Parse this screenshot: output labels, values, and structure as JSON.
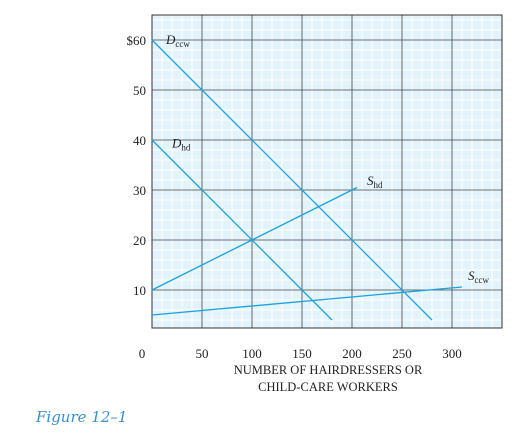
{
  "chart_data": {
    "type": "line",
    "xlabel_lines": [
      "NUMBER OF HAIRDRESSERS OR",
      "CHILD-CARE WORKERS"
    ],
    "ylabel": "",
    "origin_label": "0",
    "xlim": [
      0,
      350
    ],
    "ylim": [
      0,
      65
    ],
    "xticks": [
      50,
      100,
      150,
      200,
      250,
      300
    ],
    "yticks": [
      10,
      20,
      30,
      40,
      50,
      60
    ],
    "ytick_labels": [
      "10",
      "20",
      "30",
      "40",
      "50",
      "$60"
    ],
    "grid": true,
    "line_color": "#1aa3e0",
    "series": [
      {
        "name": "Dccw",
        "label_main": "D",
        "label_sub": "ccw",
        "points": [
          [
            0,
            60
          ],
          [
            280,
            4
          ]
        ]
      },
      {
        "name": "Dhd",
        "label_main": "D",
        "label_sub": "hd",
        "points": [
          [
            0,
            40
          ],
          [
            180,
            4
          ]
        ]
      },
      {
        "name": "Shd",
        "label_main": "S",
        "label_sub": "hd",
        "points": [
          [
            0,
            10
          ],
          [
            205,
            30.5
          ]
        ]
      },
      {
        "name": "Sccw",
        "label_main": "S",
        "label_sub": "ccw",
        "points": [
          [
            0,
            5
          ],
          [
            310,
            10.6
          ]
        ]
      }
    ]
  },
  "caption": "Figure 12–1"
}
